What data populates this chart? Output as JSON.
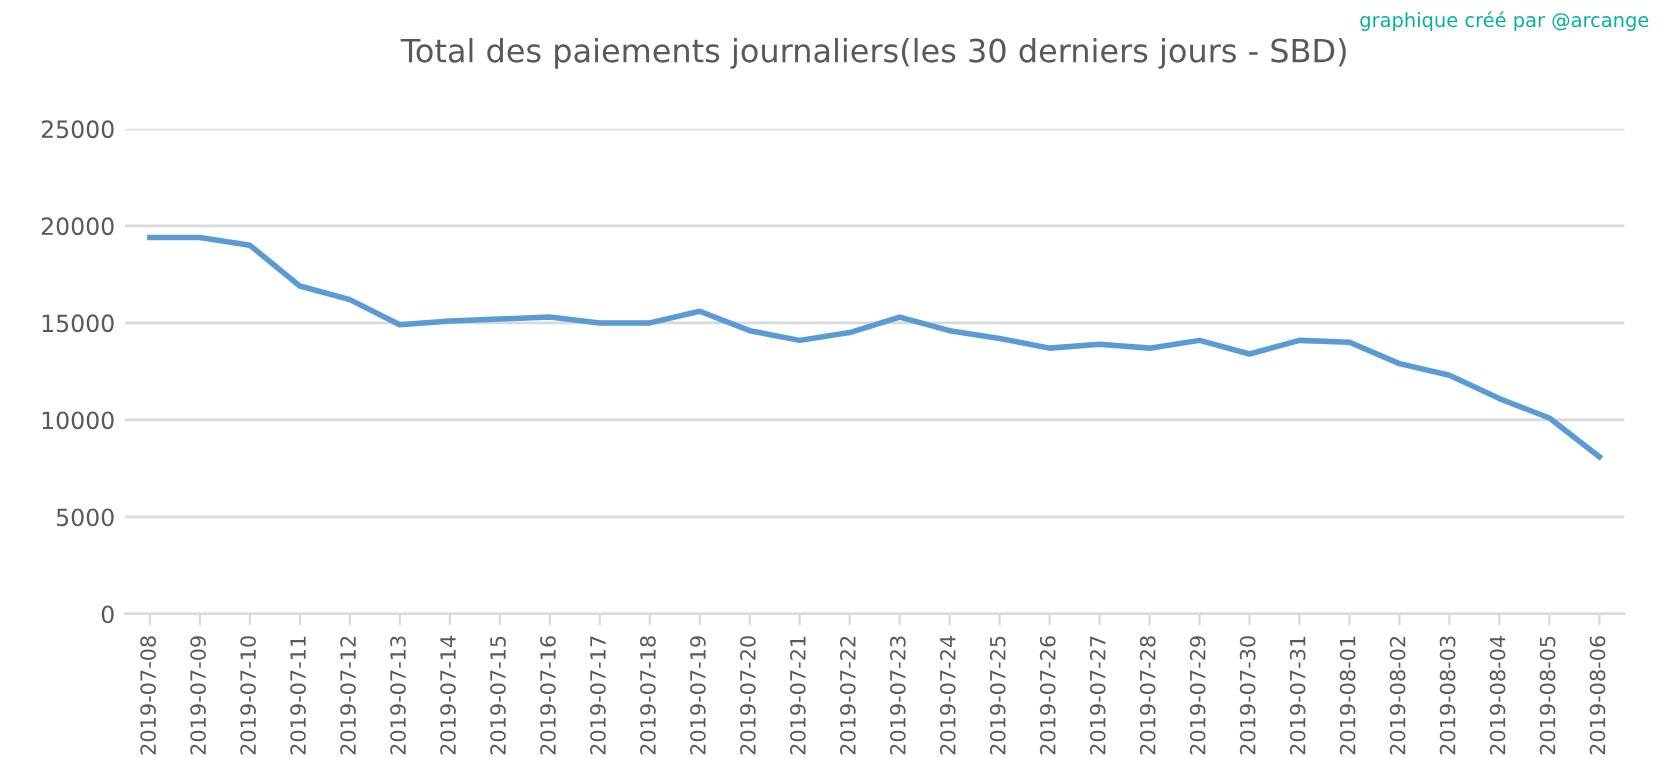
{
  "chart_data": {
    "type": "line",
    "title": "Total des paiements journaliers(les 30 derniers jours - SBD)",
    "annotations": [
      "graphique créé par @arcange"
    ],
    "categories": [
      "2019-07-08",
      "2019-07-09",
      "2019-07-10",
      "2019-07-11",
      "2019-07-12",
      "2019-07-13",
      "2019-07-14",
      "2019-07-15",
      "2019-07-16",
      "2019-07-17",
      "2019-07-18",
      "2019-07-19",
      "2019-07-20",
      "2019-07-21",
      "2019-07-22",
      "2019-07-23",
      "2019-07-24",
      "2019-07-25",
      "2019-07-26",
      "2019-07-27",
      "2019-07-28",
      "2019-07-29",
      "2019-07-30",
      "2019-07-31",
      "2019-08-01",
      "2019-08-02",
      "2019-08-03",
      "2019-08-04",
      "2019-08-05",
      "2019-08-06"
    ],
    "series": [
      {
        "color": "#5b9bd5",
        "values": [
          19400,
          19400,
          19000,
          16900,
          16200,
          14900,
          15100,
          15200,
          15300,
          15000,
          15000,
          15600,
          14600,
          14100,
          14500,
          15300,
          14600,
          14200,
          13700,
          13900,
          13700,
          14100,
          13400,
          14100,
          14000,
          12900,
          12300,
          11100,
          10100,
          8100
        ]
      }
    ],
    "ylim": [
      0,
      25000
    ],
    "yticks": [
      0,
      5000,
      10000,
      15000,
      20000,
      25000
    ],
    "grid": "y",
    "marker": "none",
    "line_style": "solid"
  }
}
